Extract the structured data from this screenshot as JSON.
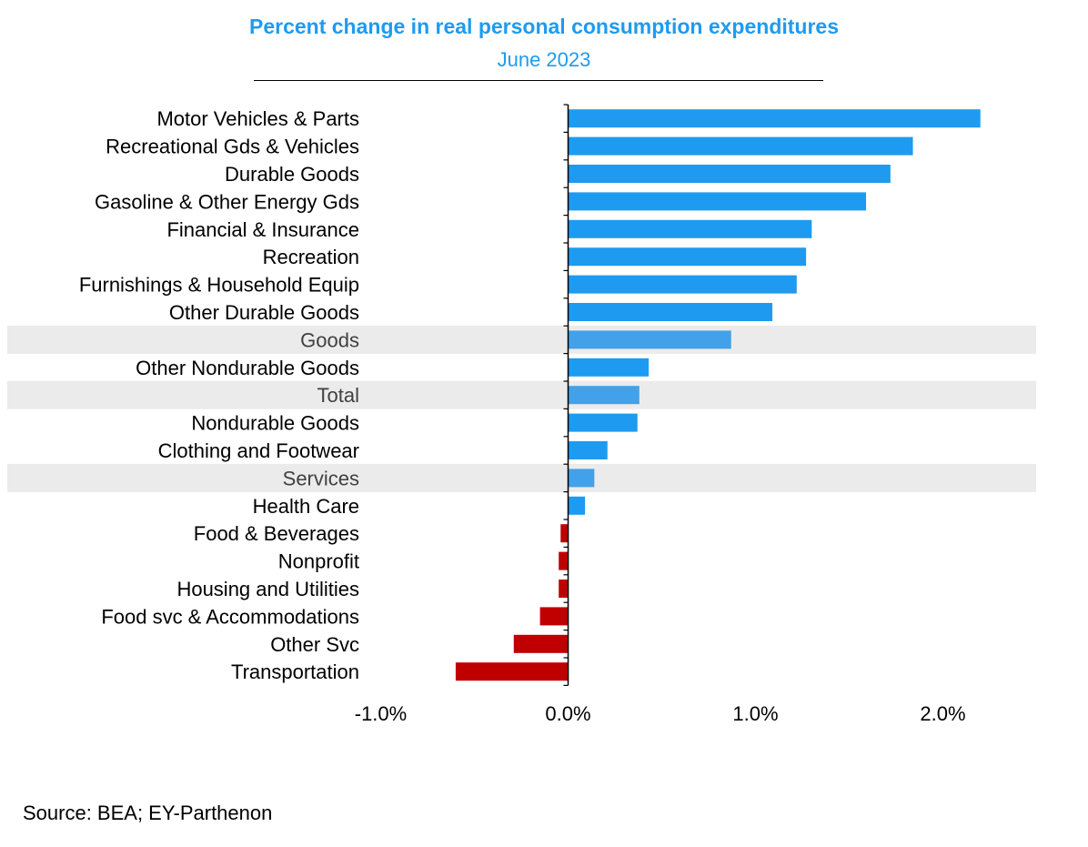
{
  "title": "Percent change in real personal consumption expenditures",
  "subtitle": "June 2023",
  "source": "Source: BEA; EY-Parthenon",
  "colors": {
    "positive": "#1e9bf0",
    "aggregate": "#42a1e8",
    "negative": "#c00000",
    "highlight_band": "#ebebeb",
    "aggregate_label": "#404040"
  },
  "chart_data": {
    "type": "bar",
    "orientation": "horizontal",
    "title": "Percent change in real personal consumption expenditures",
    "subtitle": "June 2023",
    "categories": [
      "Motor Vehicles & Parts",
      "Recreational Gds & Vehicles",
      "Durable Goods",
      "Gasoline & Other Energy Gds",
      "Financial & Insurance",
      "Recreation",
      "Furnishings & Household Equip",
      "Other Durable Goods",
      "Goods",
      "Other Nondurable Goods",
      "Total",
      "Nondurable Goods",
      "Clothing and Footwear",
      "Services",
      "Health Care",
      "Food & Beverages",
      "Nonprofit",
      "Housing and Utilities",
      "Food svc & Accommodations",
      "Other Svc",
      "Transportation"
    ],
    "values": [
      2.2,
      1.84,
      1.72,
      1.59,
      1.3,
      1.27,
      1.22,
      1.09,
      0.87,
      0.43,
      0.38,
      0.37,
      0.21,
      0.14,
      0.09,
      -0.04,
      -0.05,
      -0.05,
      -0.15,
      -0.29,
      -0.6
    ],
    "highlighted": [
      "Goods",
      "Total",
      "Services"
    ],
    "xlim": [
      -1.0,
      2.5
    ],
    "xticks": [
      -1.0,
      0.0,
      1.0,
      2.0
    ],
    "xtick_labels": [
      "-1.0%",
      "0.0%",
      "1.0%",
      "2.0%"
    ],
    "xlabel": "",
    "ylabel": "",
    "grid": false,
    "legend": "none"
  }
}
